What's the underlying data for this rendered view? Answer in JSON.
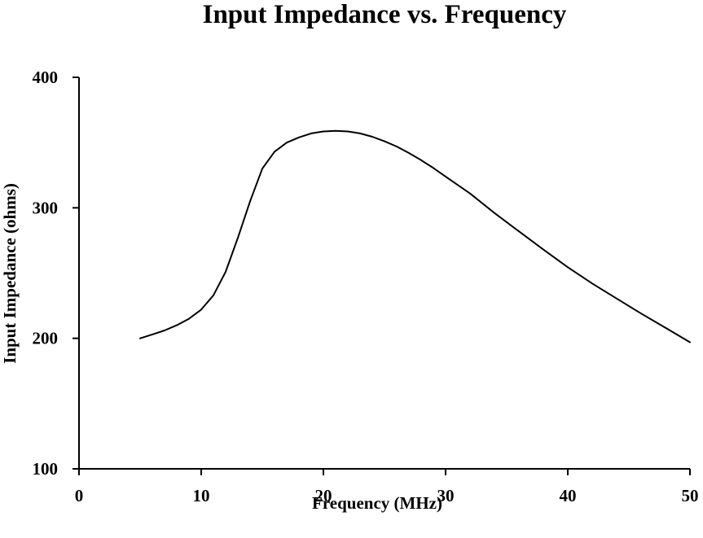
{
  "chart_data": {
    "type": "line",
    "title": "Input Impedance vs. Frequency",
    "xlabel": "Frequency (MHz)",
    "ylabel": "Input Impedance (ohms)",
    "xlim": [
      0,
      50
    ],
    "ylim": [
      100,
      400
    ],
    "x_ticks": [
      0,
      10,
      20,
      30,
      40,
      50
    ],
    "y_ticks": [
      100,
      200,
      300,
      400
    ],
    "x_tick_labels": [
      "0",
      "10",
      "20",
      "30",
      "40",
      "50"
    ],
    "y_tick_labels": [
      "100",
      "200",
      "300",
      "400"
    ],
    "grid": false,
    "legend": "none",
    "line_color": "#000000",
    "series": [
      {
        "x": [
          5,
          6,
          7,
          8,
          9,
          10,
          11,
          12,
          13,
          14,
          15,
          16,
          17,
          18,
          19,
          20,
          21,
          22,
          23,
          24,
          25,
          26,
          27,
          28,
          29,
          30,
          32,
          34,
          36,
          38,
          40,
          42,
          44,
          46,
          48,
          50
        ],
        "values": [
          200,
          203,
          206,
          210,
          215,
          222,
          233,
          251,
          277,
          305,
          330,
          343,
          350,
          354,
          357,
          358.5,
          359,
          358.5,
          357,
          354.5,
          351,
          347,
          342,
          336.5,
          330.5,
          324,
          311,
          296,
          282,
          268,
          254.5,
          242,
          230.5,
          219,
          208,
          197
        ]
      }
    ]
  }
}
